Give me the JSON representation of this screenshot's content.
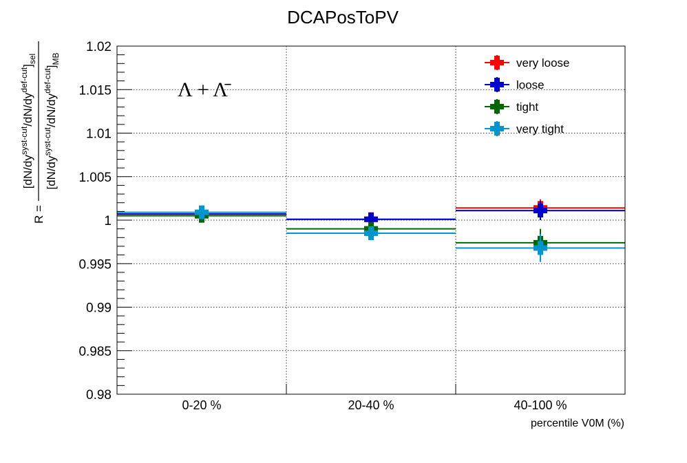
{
  "chart_data": {
    "type": "scatter",
    "title": "DCAPosToPV",
    "xlabel": "percentile V0M (%)",
    "ylabel": {
      "prefix": "R = ",
      "numerator": "[dN/dy^{syst-cut}/dN/dy^{def-cut}]_{sel}",
      "denominator": "[dN/dy^{syst-cut}/dN/dy^{def-cut}]_{MB}"
    },
    "annotation": "Λ + Λ̄",
    "categories": [
      "0-20 %",
      "20-40 %",
      "40-100 %"
    ],
    "ylim": [
      0.98,
      1.02
    ],
    "yticks": [
      "0.98",
      "0.985",
      "0.99",
      "0.995",
      "1",
      "1.005",
      "1.01",
      "1.015",
      "1.02"
    ],
    "grid": true,
    "legend_position": "top-right",
    "series": [
      {
        "name": "very loose",
        "color": "#ff0000",
        "values": [
          1.0007,
          1.0001,
          1.0014
        ],
        "errors": [
          0.0005,
          0.0004,
          0.001
        ]
      },
      {
        "name": "loose",
        "color": "#0000cc",
        "values": [
          1.0007,
          1.0001,
          1.0011
        ],
        "errors": [
          0.0005,
          0.0005,
          0.0011
        ]
      },
      {
        "name": "tight",
        "color": "#006600",
        "values": [
          1.0005,
          0.999,
          0.9974
        ],
        "errors": [
          0.0006,
          0.0005,
          0.0016
        ]
      },
      {
        "name": "very tight",
        "color": "#0095cc",
        "values": [
          1.0009,
          0.9985,
          0.9968
        ],
        "errors": [
          0.0007,
          0.0007,
          0.0016
        ]
      }
    ]
  }
}
